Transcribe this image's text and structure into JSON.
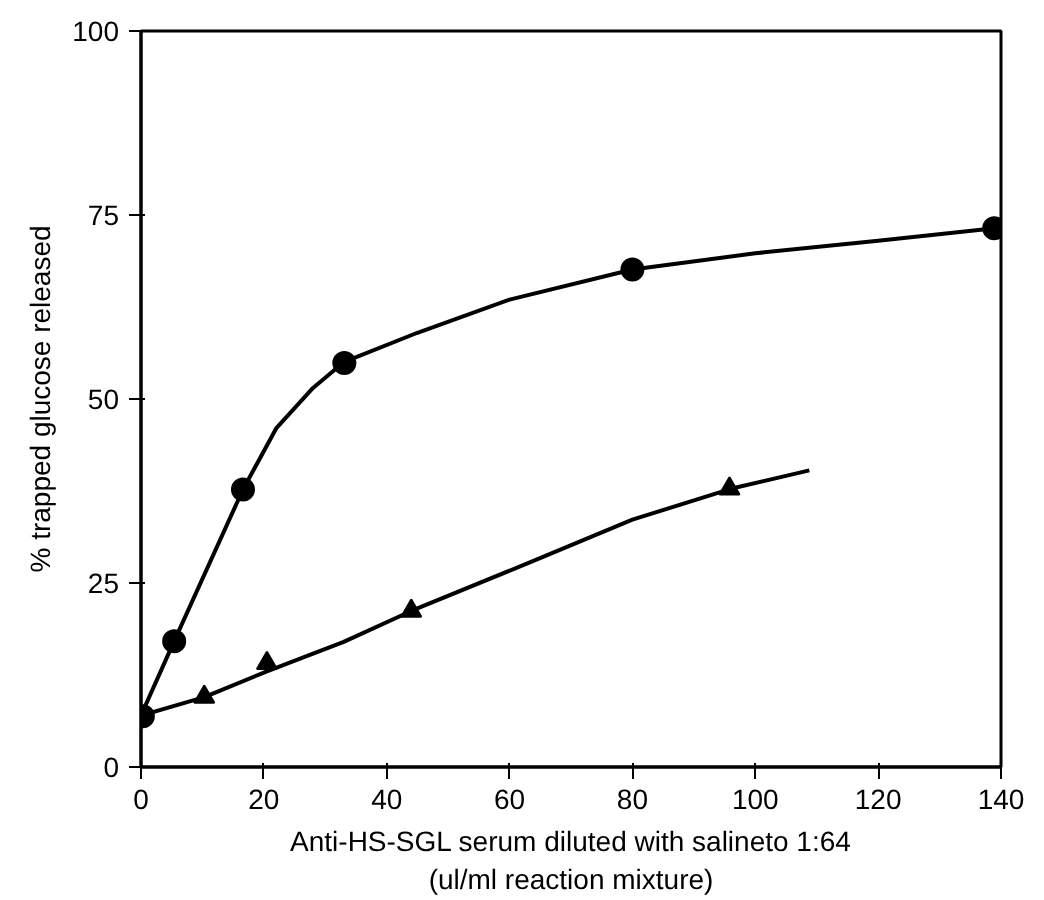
{
  "chart_data": {
    "type": "scatter",
    "xlabel": "Anti-HS-SGL serum diluted with salineto 1:64\n(ul/ml reaction mixture)",
    "ylabel": "% trapped glucose released",
    "xlim": [
      0,
      140
    ],
    "ylim": [
      0,
      100
    ],
    "xticks": [
      0,
      20,
      40,
      60,
      80,
      100,
      120,
      140
    ],
    "yticks": [
      0,
      25,
      50,
      75,
      100
    ],
    "grid": false,
    "series": [
      {
        "type": "line",
        "marker": "none",
        "line_style": "solid",
        "color": "#000000",
        "x": [
          0,
          5.4,
          16.6,
          22,
          28,
          33,
          45,
          60,
          80,
          100,
          120,
          139
        ],
        "values": [
          7,
          17.1,
          37.7,
          46,
          51.5,
          55,
          59,
          63.5,
          67.6,
          69.8,
          71.5,
          73.2
        ]
      },
      {
        "type": "line",
        "marker": "none",
        "line_style": "solid",
        "color": "#000000",
        "x": [
          0,
          10.3,
          20.5,
          33,
          44,
          63,
          80,
          96,
          108.8
        ],
        "values": [
          7,
          9.5,
          13,
          17,
          21.2,
          27.7,
          33.6,
          37.8,
          40.3
        ]
      },
      {
        "marker": "circle",
        "color": "#000000",
        "x": [
          0.3,
          5.4,
          16.6,
          33.1,
          80,
          138.9
        ],
        "values": [
          6.9,
          17.1,
          37.7,
          54.9,
          67.6,
          73.2
        ]
      },
      {
        "marker": "triangle",
        "color": "#000000",
        "x": [
          10.3,
          20.5,
          44,
          95.8
        ],
        "values": [
          9.5,
          14.1,
          21.2,
          37.8
        ]
      }
    ]
  }
}
